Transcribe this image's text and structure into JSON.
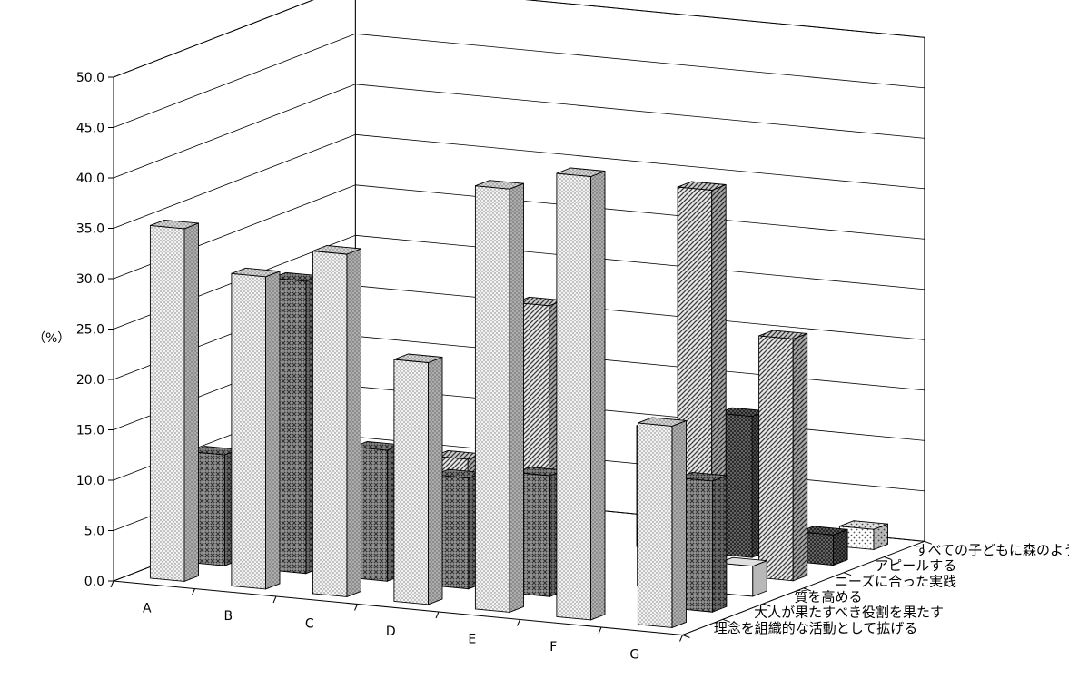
{
  "chart_data": {
    "type": "bar",
    "subtype": "3d-bar",
    "y_unit_label": "（%）",
    "ylim": [
      0,
      50
    ],
    "ytick_labels": [
      "0.0",
      "5.0",
      "10.0",
      "15.0",
      "20.0",
      "25.0",
      "30.0",
      "35.0",
      "40.0",
      "45.0",
      "50.0"
    ],
    "categories": [
      "A",
      "B",
      "C",
      "D",
      "E",
      "F",
      "G"
    ],
    "series": [
      {
        "name": "理念を組織的な活動として拡げる",
        "values": [
          35,
          31,
          34,
          24,
          42,
          44,
          20
        ],
        "pattern": "fine-dots"
      },
      {
        "name": "大人が果たすべき役割を果たす",
        "values": [
          11,
          29,
          13,
          11,
          12,
          0,
          13
        ],
        "pattern": "crosshatch"
      },
      {
        "name": "質を高める",
        "values": [
          0,
          10,
          0,
          5,
          6,
          6,
          3
        ],
        "pattern": "white"
      },
      {
        "name": "ニーズに合った実践",
        "values": [
          0,
          0,
          9,
          25,
          0,
          38,
          24
        ],
        "pattern": "diagonal"
      },
      {
        "name": "アピールする",
        "values": [
          0,
          0,
          0,
          15,
          12,
          14,
          3
        ],
        "pattern": "dark-dots"
      },
      {
        "name": "すべての子どもに森のようちえんを",
        "values": [
          0,
          0,
          0,
          0,
          0,
          10,
          2
        ],
        "pattern": "sparse-dots"
      }
    ],
    "grid": true,
    "legend_position": "right-depth-axis"
  }
}
